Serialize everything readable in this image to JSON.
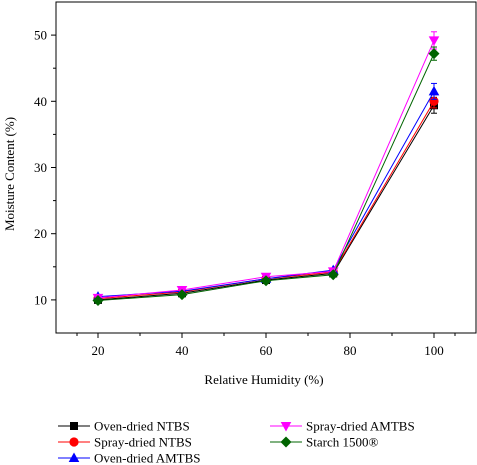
{
  "chart_data": {
    "type": "line",
    "title": "",
    "xlabel": "Relative Humidity (%)",
    "ylabel": "Moisture Content (%)",
    "xlim": [
      10,
      110
    ],
    "ylim": [
      5,
      55
    ],
    "xticks": [
      20,
      40,
      60,
      80,
      100
    ],
    "yticks": [
      10,
      20,
      30,
      40,
      50
    ],
    "grid": false,
    "legend_position": "bottom",
    "x": [
      20,
      40,
      60,
      76,
      100
    ],
    "series": [
      {
        "name": "Oven-dried NTBS",
        "values": [
          10.0,
          11.0,
          13.0,
          14.0,
          39.4
        ],
        "errors": [
          0.3,
          0.3,
          0.3,
          0.3,
          1.2
        ],
        "color": "#000000",
        "marker": "square"
      },
      {
        "name": "Spray-dried NTBS",
        "values": [
          10.2,
          11.2,
          13.2,
          14.2,
          40.0
        ],
        "errors": [
          0.3,
          0.3,
          0.3,
          0.3,
          1.0
        ],
        "color": "#ff0000",
        "marker": "circle"
      },
      {
        "name": "Oven-dried AMTBS",
        "values": [
          10.5,
          11.3,
          13.2,
          14.5,
          41.5
        ],
        "errors": [
          0.3,
          0.3,
          0.3,
          0.3,
          1.2
        ],
        "color": "#0000ff",
        "marker": "triangle-up"
      },
      {
        "name": "Spray-dried AMTBS",
        "values": [
          10.3,
          11.5,
          13.5,
          14.3,
          49.2
        ],
        "errors": [
          0.3,
          0.3,
          0.3,
          0.3,
          1.3
        ],
        "color": "#ff00ff",
        "marker": "triangle-down"
      },
      {
        "name": "Starch 1500®",
        "values": [
          9.9,
          10.8,
          12.9,
          13.8,
          47.2
        ],
        "errors": [
          0.3,
          0.3,
          0.3,
          0.3,
          1.0
        ],
        "color": "#006400",
        "marker": "diamond"
      }
    ]
  }
}
